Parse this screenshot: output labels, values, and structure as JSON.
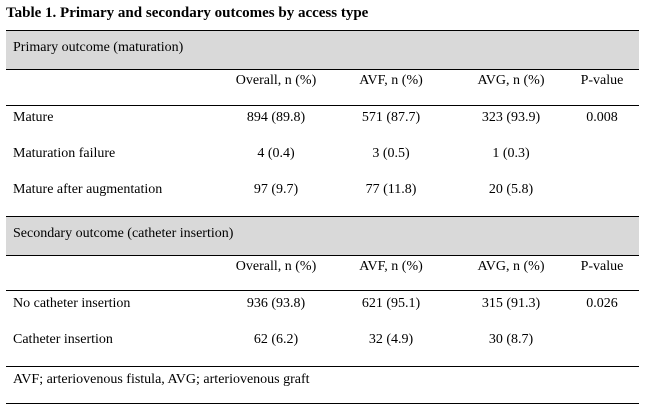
{
  "title": "Table 1. Primary and secondary outcomes by access type",
  "columns": [
    "Overall, n (%)",
    "AVF, n (%)",
    "AVG, n (%)",
    "P-value"
  ],
  "sections": [
    {
      "label": "Primary outcome (maturation)",
      "rows": [
        {
          "label": "Mature",
          "overall": "894 (89.8)",
          "avf": "571 (87.7)",
          "avg": "323 (93.9)",
          "p": "0.008"
        },
        {
          "label": "Maturation failure",
          "overall": "4 (0.4)",
          "avf": "3 (0.5)",
          "avg": "1 (0.3)",
          "p": ""
        },
        {
          "label": "Mature after augmentation",
          "overall": "97 (9.7)",
          "avf": "77 (11.8)",
          "avg": "20 (5.8)",
          "p": ""
        }
      ]
    },
    {
      "label": "Secondary outcome (catheter insertion)",
      "rows": [
        {
          "label": "No catheter insertion",
          "overall": "936 (93.8)",
          "avf": "621 (95.1)",
          "avg": "315 (91.3)",
          "p": "0.026"
        },
        {
          "label": "Catheter insertion",
          "overall": "62 (6.2)",
          "avf": "32 (4.9)",
          "avg": "30 (8.7)",
          "p": ""
        }
      ]
    }
  ],
  "footnote": "AVF; arteriovenous fistula, AVG; arteriovenous graft"
}
